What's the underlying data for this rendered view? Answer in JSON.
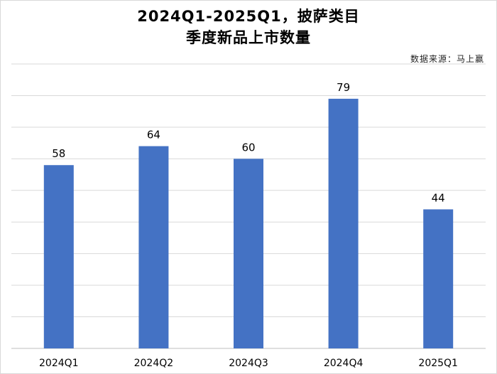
{
  "title_lines": [
    "2024Q1-2025Q1，披萨类目",
    "季度新品上市数量"
  ],
  "source": "数据来源：马上赢",
  "colors": {
    "bar": "#4472C4",
    "grid": "#d9d9d9",
    "axis": "#bfbfbf"
  },
  "chart_data": {
    "type": "bar",
    "title": "2024Q1-2025Q1，披萨类目 季度新品上市数量",
    "categories": [
      "2024Q1",
      "2024Q2",
      "2024Q3",
      "2024Q4",
      "2025Q1"
    ],
    "values": [
      58,
      64,
      60,
      79,
      44
    ],
    "xlabel": "",
    "ylabel": "",
    "ylim": [
      0,
      90
    ],
    "grid": true,
    "show_y_tick_labels": false,
    "data_labels": true
  }
}
